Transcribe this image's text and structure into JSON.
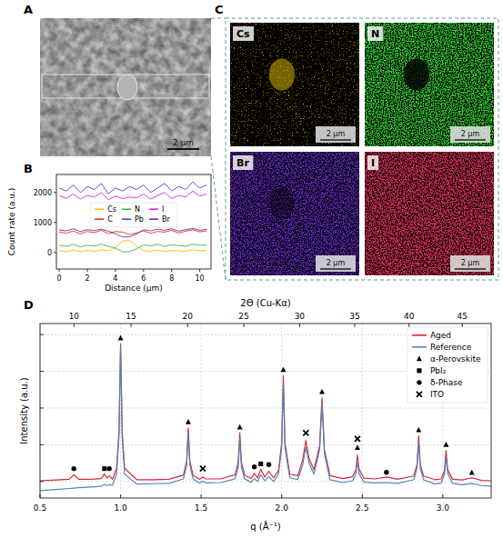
{
  "sem_image": {
    "label": "A",
    "scale_bar": "2 μm"
  },
  "edx_maps": {
    "label": "C",
    "scale_bar": "2 μm",
    "maps": [
      {
        "element": "Cs",
        "color": "#d2b000"
      },
      {
        "element": "N",
        "color": "#33cc33"
      },
      {
        "element": "Br",
        "color": "#6a2fd0"
      },
      {
        "element": "I",
        "color": "#d8305a"
      }
    ]
  },
  "chart_data": [
    {
      "type": "line",
      "label": "B",
      "xlabel": "Distance (μm)",
      "ylabel": "Count rate (a.u.)",
      "xlim": [
        -0.2,
        10.8
      ],
      "ylim": [
        -550,
        2600
      ],
      "xticks": [
        0,
        2,
        4,
        6,
        8,
        10
      ],
      "yticks": [
        0,
        1000,
        2000
      ],
      "grid": false,
      "legend": "upper center",
      "x": [
        0,
        0.5,
        1,
        1.5,
        2,
        2.5,
        3,
        3.5,
        4,
        4.5,
        5,
        5.5,
        6,
        6.5,
        7,
        7.5,
        8,
        8.5,
        9,
        9.5,
        10,
        10.5
      ],
      "series": [
        {
          "name": "Cs",
          "color": "#e8c300",
          "values": [
            60,
            30,
            80,
            20,
            70,
            40,
            90,
            50,
            150,
            380,
            400,
            220,
            60,
            40,
            80,
            30,
            70,
            50,
            40,
            90,
            60,
            70
          ]
        },
        {
          "name": "C",
          "color": "#e03030",
          "values": [
            680,
            640,
            720,
            620,
            700,
            660,
            740,
            630,
            700,
            680,
            600,
            650,
            720,
            640,
            700,
            680,
            740,
            650,
            710,
            760,
            690,
            720
          ]
        },
        {
          "name": "N",
          "color": "#3cb44b",
          "values": [
            250,
            200,
            270,
            190,
            240,
            210,
            280,
            200,
            150,
            20,
            30,
            120,
            250,
            220,
            270,
            200,
            260,
            230,
            210,
            280,
            240,
            250
          ]
        },
        {
          "name": "Pb",
          "color": "#2b4fd8",
          "values": [
            2150,
            2050,
            2250,
            2000,
            2200,
            2100,
            2300,
            1950,
            2150,
            2050,
            2200,
            2100,
            2250,
            2000,
            2150,
            2300,
            2050,
            2200,
            2100,
            2350,
            2150,
            2250
          ]
        },
        {
          "name": "I",
          "color": "#e020e0",
          "values": [
            1900,
            1800,
            1950,
            1780,
            1900,
            1850,
            2000,
            1760,
            1880,
            1800,
            1850,
            1820,
            1950,
            1780,
            1900,
            2000,
            1800,
            1900,
            1850,
            2050,
            1880,
            1950
          ]
        },
        {
          "name": "Br",
          "color": "#7b2d8e",
          "values": [
            750,
            720,
            790,
            700,
            760,
            730,
            780,
            710,
            620,
            520,
            520,
            620,
            760,
            720,
            780,
            740,
            790,
            710,
            760,
            800,
            740,
            770
          ]
        }
      ]
    },
    {
      "type": "line",
      "label": "D",
      "xlabel": "q (Å⁻¹)",
      "x2label": "2Θ (Cu-Kα)",
      "ylabel": "Intensity (a.u.)",
      "xlim": [
        0.5,
        3.3
      ],
      "ylim": [
        -0.45,
        4.3
      ],
      "xticks": [
        0.5,
        {
          "value": 1,
          "label": "1.0"
        },
        1.5,
        {
          "value": 2,
          "label": "2.0"
        },
        2.5,
        {
          "value": 3,
          "label": "3.0"
        }
      ],
      "x2ticks": [
        {
          "value": 0.711,
          "label": "10"
        },
        {
          "value": 1.065,
          "label": "15"
        },
        {
          "value": 1.416,
          "label": "20"
        },
        {
          "value": 1.765,
          "label": "25"
        },
        {
          "value": 2.111,
          "label": "30"
        },
        {
          "value": 2.453,
          "label": "35"
        },
        {
          "value": 2.79,
          "label": "40"
        },
        {
          "value": 3.121,
          "label": "45"
        }
      ],
      "yticks": [
        0,
        1,
        2,
        3,
        4
      ],
      "tick_labels": "x",
      "grid": true,
      "legend": "upper right",
      "x": [
        0.5,
        0.6,
        0.68,
        0.71,
        0.74,
        0.82,
        0.88,
        0.9,
        0.915,
        0.93,
        0.95,
        0.975,
        0.99,
        1.0,
        1.01,
        1.025,
        1.1,
        1.2,
        1.3,
        1.39,
        1.41,
        1.42,
        1.43,
        1.45,
        1.49,
        1.51,
        1.53,
        1.62,
        1.71,
        1.73,
        1.74,
        1.75,
        1.77,
        1.81,
        1.83,
        1.85,
        1.87,
        1.895,
        1.92,
        1.95,
        1.98,
        2.0,
        2.01,
        2.02,
        2.05,
        2.1,
        2.13,
        2.15,
        2.17,
        2.2,
        2.235,
        2.25,
        2.265,
        2.3,
        2.38,
        2.44,
        2.46,
        2.47,
        2.48,
        2.51,
        2.58,
        2.65,
        2.72,
        2.82,
        2.84,
        2.85,
        2.86,
        2.88,
        2.95,
        2.99,
        3.01,
        3.02,
        3.03,
        3.06,
        3.12,
        3.18,
        3.24,
        3.3
      ],
      "series": [
        {
          "name": "Aged",
          "type": "line",
          "color": "#d62839",
          "values": [
            0.02,
            0.04,
            0.06,
            0.18,
            0.06,
            0.06,
            0.08,
            0.21,
            0.09,
            0.16,
            0.06,
            0.36,
            1.35,
            3.75,
            1.35,
            0.36,
            0.05,
            0.05,
            0.06,
            0.17,
            0.55,
            1.46,
            0.55,
            0.17,
            0.06,
            0.12,
            0.07,
            0.07,
            0.18,
            0.52,
            1.33,
            0.52,
            0.17,
            0.08,
            0.22,
            0.1,
            0.33,
            0.12,
            0.28,
            0.1,
            0.3,
            1.06,
            2.88,
            1.06,
            0.2,
            0.16,
            0.58,
            1.12,
            0.62,
            0.32,
            0.97,
            2.28,
            0.86,
            0.16,
            0.08,
            0.13,
            0.32,
            0.72,
            0.34,
            0.09,
            0.07,
            0.12,
            0.06,
            0.15,
            0.47,
            1.24,
            0.47,
            0.15,
            0.05,
            0.07,
            0.3,
            0.84,
            0.32,
            0.06,
            0.04,
            0.1,
            0.03,
            0.02
          ]
        },
        {
          "name": "Reference",
          "type": "line",
          "color": "#4f86b8",
          "values": [
            -0.25,
            -0.22,
            -0.19,
            -0.18,
            -0.17,
            -0.15,
            -0.13,
            -0.08,
            -0.11,
            -0.09,
            -0.1,
            0.2,
            1.21,
            3.66,
            1.22,
            0.2,
            -0.07,
            -0.06,
            -0.05,
            0.07,
            0.43,
            1.31,
            0.43,
            0.07,
            -0.04,
            0.01,
            -0.04,
            -0.03,
            0.07,
            0.39,
            1.17,
            0.39,
            0.07,
            -0.02,
            0.08,
            0,
            0.18,
            0.02,
            0.13,
            0,
            0.2,
            0.93,
            2.68,
            0.93,
            0.1,
            0.05,
            0.45,
            0.93,
            0.5,
            0.2,
            0.85,
            2.13,
            0.75,
            0.05,
            -0.03,
            0.02,
            0.2,
            0.56,
            0.22,
            -0.02,
            -0.04,
            -0.03,
            -0.05,
            0.05,
            0.36,
            1.08,
            0.36,
            0.05,
            -0.07,
            -0.04,
            0.2,
            0.67,
            0.22,
            -0.05,
            -0.09,
            -0.05,
            -0.11,
            -0.13
          ]
        },
        {
          "name": "α-Perovskite",
          "type": "scatter",
          "marker": "triangle",
          "color": "#000000",
          "x": [
            1.0,
            1.42,
            1.74,
            2.01,
            2.25,
            2.47,
            2.85,
            3.02,
            3.18
          ],
          "values": [
            3.9,
            1.62,
            1.48,
            3.04,
            2.44,
            0.92,
            1.4,
            1.0,
            0.24
          ]
        },
        {
          "name": "PbI₂",
          "type": "scatter",
          "marker": "square",
          "color": "#000000",
          "x": [
            0.9,
            1.87
          ],
          "values": [
            0.35,
            0.48
          ]
        },
        {
          "name": "δ-Phase",
          "type": "scatter",
          "marker": "circle",
          "color": "#000000",
          "x": [
            0.71,
            0.93,
            1.83,
            1.92,
            2.65
          ],
          "values": [
            0.35,
            0.35,
            0.4,
            0.46,
            0.25
          ]
        },
        {
          "name": "ITO",
          "type": "scatter",
          "marker": "x",
          "color": "#000000",
          "x": [
            1.51,
            2.15,
            2.47
          ],
          "values": [
            0.35,
            1.32,
            1.16
          ]
        }
      ]
    }
  ]
}
